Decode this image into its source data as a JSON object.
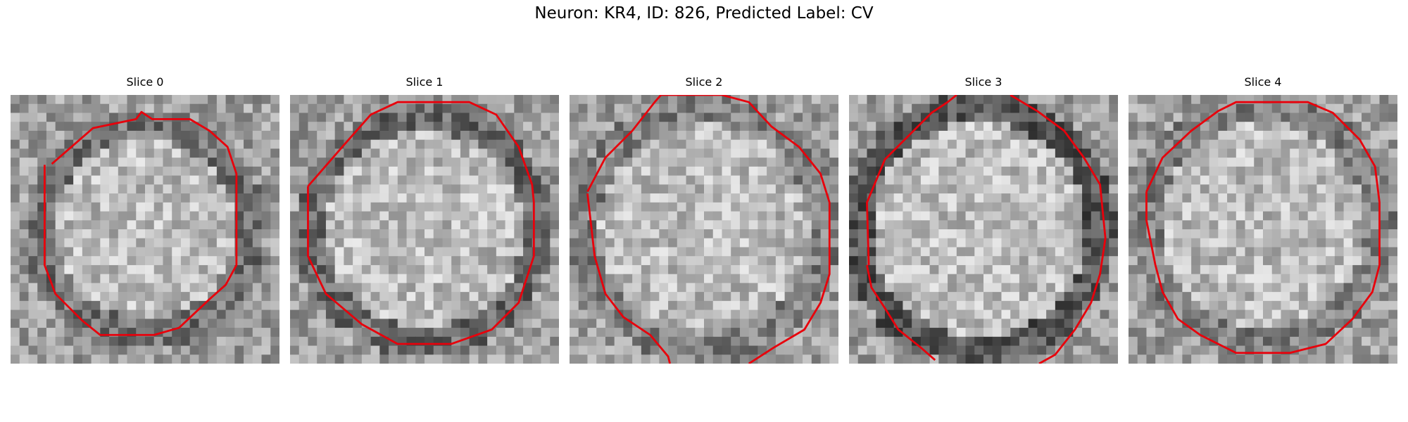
{
  "figure": {
    "title": "Neuron: KR4, ID: 826, Predicted Label: CV"
  },
  "slices": [
    {
      "title": "Slice 0"
    },
    {
      "title": "Slice 1"
    },
    {
      "title": "Slice 2"
    },
    {
      "title": "Slice 3"
    },
    {
      "title": "Slice 4"
    }
  ],
  "colors": {
    "contour": "#e8000b",
    "background": "#ffffff"
  }
}
